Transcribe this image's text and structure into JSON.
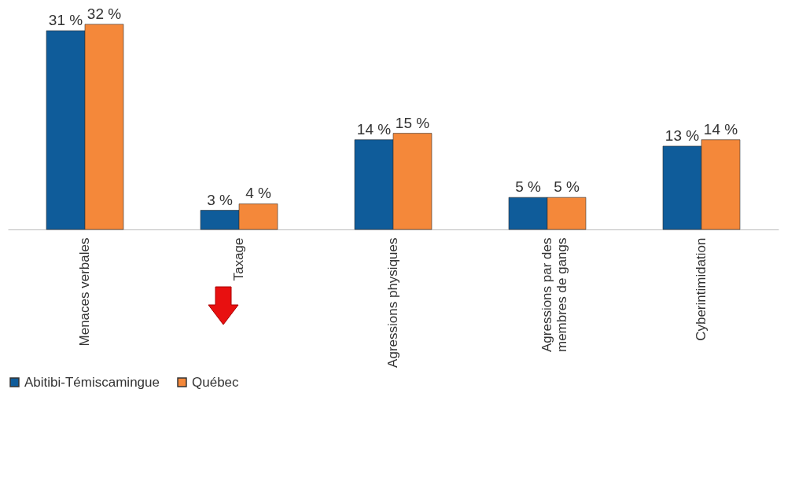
{
  "chart_data": {
    "type": "bar",
    "categories": [
      "Menaces verbales",
      "Taxage",
      "Agressions physiques",
      "Agressions par des membres de gangs",
      "Cyberintimidation"
    ],
    "series": [
      {
        "name": "Abitibi-Témiscamingue",
        "color": "#0f5c9a",
        "values": [
          31,
          3,
          14,
          5,
          13
        ],
        "value_labels": [
          "31 %",
          "3 %",
          "14 %",
          "5 %",
          "13 %"
        ]
      },
      {
        "name": "Québec",
        "color": "#f4883a",
        "values": [
          32,
          4,
          15,
          5,
          14
        ],
        "value_labels": [
          "32 %",
          "4 %",
          "15 %",
          "5 %",
          "14 %"
        ]
      }
    ],
    "legend": "bottom",
    "grid": false
  }
}
